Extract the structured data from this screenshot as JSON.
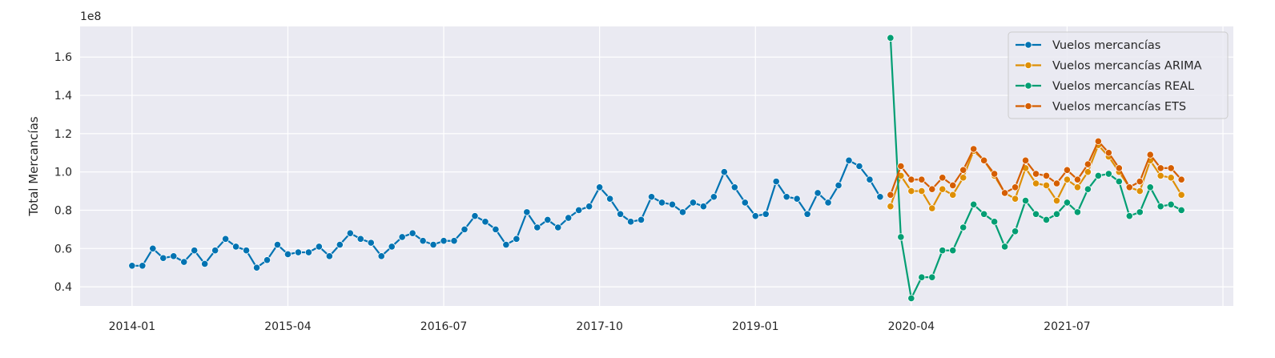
{
  "chart_data": {
    "type": "line",
    "title": "",
    "xlabel": "",
    "ylabel": "Total Mercancías",
    "y_scale_label": "1e8",
    "x_tick_labels": [
      "2014-01",
      "2015-04",
      "2016-07",
      "2017-10",
      "2019-01",
      "2020-04",
      "2021-07"
    ],
    "x_ticks": [
      "2014-01",
      "2015-04",
      "2016-07",
      "2017-10",
      "2019-01",
      "2020-04",
      "2021-07",
      "2022-10"
    ],
    "y_ticks": [
      0.4,
      0.6,
      0.8,
      1.0,
      1.2,
      1.4,
      1.6
    ],
    "y_tick_labels": [
      "0.4",
      "0.6",
      "0.8",
      "1.0",
      "1.2",
      "1.4",
      "1.6"
    ],
    "xlim": [
      "2013-08",
      "2022-11"
    ],
    "ylim": [
      0.3,
      1.76
    ],
    "grid": true,
    "background": "#eaeaf2",
    "legend_position": "top-right",
    "series": [
      {
        "name": "Vuelos mercancías",
        "color": "#0173b2",
        "start": "2014-01",
        "values": [
          0.51,
          0.51,
          0.6,
          0.55,
          0.56,
          0.53,
          0.59,
          0.52,
          0.59,
          0.65,
          0.61,
          0.59,
          0.5,
          0.54,
          0.62,
          0.57,
          0.58,
          0.58,
          0.61,
          0.56,
          0.62,
          0.68,
          0.65,
          0.63,
          0.56,
          0.61,
          0.66,
          0.68,
          0.64,
          0.62,
          0.64,
          0.64,
          0.7,
          0.77,
          0.74,
          0.7,
          0.62,
          0.65,
          0.79,
          0.71,
          0.75,
          0.71,
          0.76,
          0.8,
          0.82,
          0.92,
          0.86,
          0.78,
          0.74,
          0.75,
          0.87,
          0.84,
          0.83,
          0.79,
          0.84,
          0.82,
          0.87,
          1.0,
          0.92,
          0.84,
          0.77,
          0.78,
          0.95,
          0.87,
          0.86,
          0.78,
          0.89,
          0.84,
          0.93,
          1.06,
          1.03,
          0.96,
          0.87
        ]
      },
      {
        "name": "Vuelos mercancías ARIMA",
        "color": "#de8f05",
        "start": "2020-02",
        "values": [
          0.82,
          0.98,
          0.9,
          0.9,
          0.81,
          0.91,
          0.88,
          0.97,
          1.11,
          1.06,
          0.98,
          0.89,
          0.86,
          1.02,
          0.94,
          0.93,
          0.85,
          0.96,
          0.92,
          1.0,
          1.14,
          1.08,
          1.0,
          0.92,
          0.9,
          1.06,
          0.98,
          0.97,
          0.88
        ]
      },
      {
        "name": "Vuelos mercancías REAL",
        "color": "#029e73",
        "start": "2020-02",
        "values": [
          1.7,
          0.66,
          0.34,
          0.45,
          0.45,
          0.59,
          0.59,
          0.71,
          0.83,
          0.78,
          0.74,
          0.61,
          0.69,
          0.85,
          0.78,
          0.75,
          0.78,
          0.84,
          0.79,
          0.91,
          0.98,
          0.99,
          0.95,
          0.77,
          0.79,
          0.92,
          0.82,
          0.83,
          0.8
        ]
      },
      {
        "name": "Vuelos mercancías ETS",
        "color": "#d55e00",
        "start": "2020-02",
        "values": [
          0.88,
          1.03,
          0.96,
          0.96,
          0.91,
          0.97,
          0.93,
          1.01,
          1.12,
          1.06,
          0.99,
          0.89,
          0.92,
          1.06,
          0.99,
          0.98,
          0.94,
          1.01,
          0.96,
          1.04,
          1.16,
          1.1,
          1.02,
          0.92,
          0.95,
          1.09,
          1.02,
          1.02,
          0.96
        ]
      }
    ]
  }
}
